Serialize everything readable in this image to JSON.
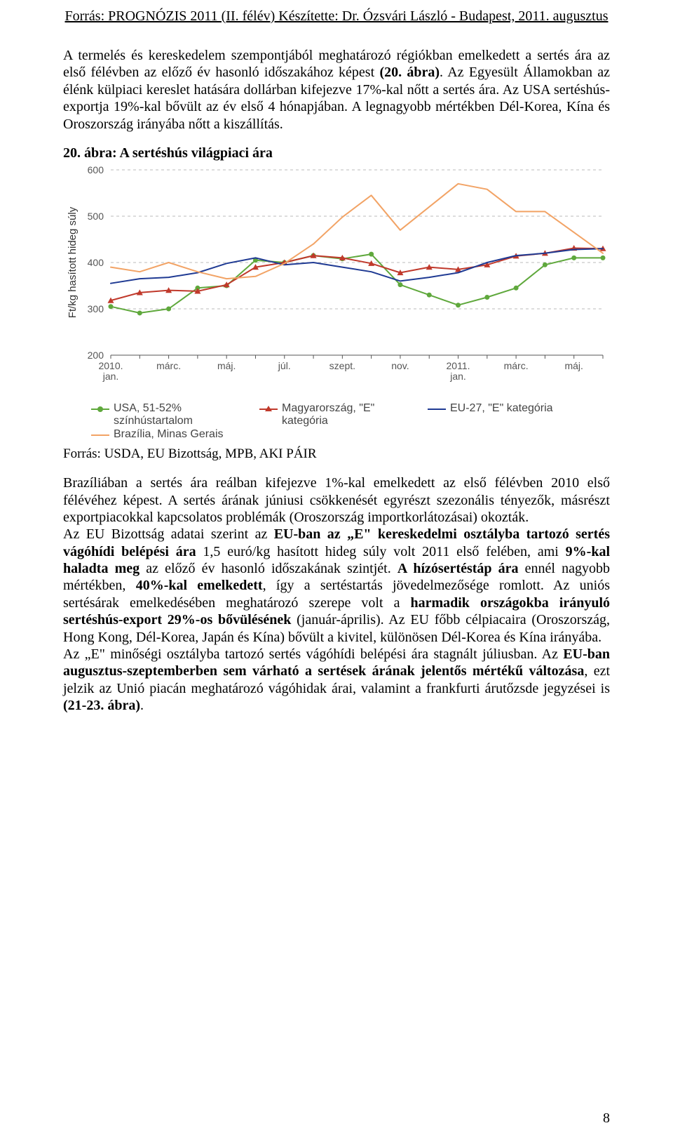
{
  "header_source": "Forrás: PROGNÓZIS 2011 (II. félév) Készítette: Dr. Ózsvári László - Budapest, 2011. augusztus",
  "para1_pre": "A termelés és kereskedelem szempontjából meghatározó régiókban emelkedett a sertés ára az első félévben az előző év hasonló időszakához képest ",
  "para1_bold": "(20. ábra)",
  "para1_post": ". Az Egyesült Államokban az élénk külpiaci kereslet hatására dollárban kifejezve 17%-kal nőtt a sertés ára. Az USA sertéshús-exportja 19%-kal bővült az év első 4 hónapjában. A legnagyobb mértékben Dél-Korea, Kína és Oroszország irányába nőtt a kiszállítás.",
  "chart_title": "20. ábra: A sertéshús világpiaci ára",
  "chart_source": "Forrás: USDA, EU Bizottság, MPB, AKI PÁIR",
  "para2": {
    "s1": "Brazíliában a sertés ára reálban kifejezve 1%-kal emelkedett az első félévben 2010 első félévéhez képest. A sertés árának júniusi csökkenését egyrészt szezonális tényezők, másrészt exportpiacokkal kapcsolatos problémák (Oroszország importkorlátozásai) okozták.",
    "s2a": "Az EU Bizottság adatai szerint az ",
    "s2b": "EU-ban az „E\" kereskedelmi osztályba tartozó sertés vágóhídi belépési ára",
    "s2c": " 1,5 euró/kg hasított hideg súly volt 2011 első felében, ami ",
    "s2d": "9%-kal haladta meg",
    "s2e": " az előző év hasonló időszakának szintjét. ",
    "s2f": "A hízósertéstáp ára",
    "s2g": " ennél nagyobb mértékben, ",
    "s2h": "40%-kal emelkedett",
    "s2i": ", így a sertéstartás jövedelmezősége romlott. Az uniós sertésárak emelkedésében meghatározó szerepe volt a ",
    "s2j": "harmadik országokba irányuló sertéshús-export 29%-os bővülésének",
    "s2k": " (január-április). Az EU főbb célpiacaira (Oroszország, Hong Kong, Dél-Korea, Japán és Kína) bővült a kivitel, különösen Dél-Korea és Kína irányába.",
    "s3a": "Az „E\" minőségi osztályba tartozó sertés vágóhídi belépési ára stagnált júliusban. Az ",
    "s3b": "EU-ban augusztus-szeptemberben sem várható a sertések árának jelentős mértékű változása",
    "s3c": ", ezt jelzik az Unió piacán meghatározó vágóhidak árai, valamint a frankfurti árutőzsde jegyzései is ",
    "s3d": "(21-23. ábra)",
    "s3e": "."
  },
  "page_number": "8",
  "chart": {
    "type": "line",
    "y_axis_label": "Ft/kg hasított hideg súly",
    "background_color": "#ffffff",
    "grid_color": "#bbbbbb",
    "axis_color": "#555555",
    "ylim": [
      200,
      600
    ],
    "ytick_step": 100,
    "y_ticks": [
      200,
      300,
      400,
      500,
      600
    ],
    "x_labels": [
      "2010.\njan.",
      "márc.",
      "máj.",
      "júl.",
      "szept.",
      "nov.",
      "2011.\njan.",
      "márc.",
      "máj."
    ],
    "x_count": 18,
    "line_width": 2,
    "marker_size": 7,
    "fontsize_axis": 13,
    "fontsize_label": 14,
    "series": [
      {
        "name": "USA, 51-52% színhústartalom",
        "color": "#5fa83c",
        "marker": "circle",
        "values": [
          305,
          291,
          300,
          345,
          350,
          405,
          400,
          415,
          408,
          418,
          352,
          330,
          308,
          325,
          345,
          395,
          410,
          410
        ]
      },
      {
        "name": "Magyarország, \"E\" kategória",
        "color": "#c0392b",
        "marker": "triangle",
        "values": [
          318,
          335,
          340,
          338,
          352,
          390,
          400,
          415,
          410,
          398,
          378,
          390,
          385,
          395,
          414,
          420,
          431,
          430
        ]
      },
      {
        "name": "EU-27, \"E\" kategória",
        "color": "#1f3a93",
        "marker": "none",
        "values": [
          355,
          365,
          368,
          378,
          398,
          410,
          395,
          400,
          390,
          380,
          360,
          368,
          378,
          400,
          415,
          420,
          428,
          430
        ]
      },
      {
        "name": "Brazília, Minas Gerais",
        "color": "#f2a365",
        "marker": "none",
        "values": [
          390,
          380,
          400,
          380,
          365,
          370,
          398,
          440,
          498,
          545,
          470,
          520,
          570,
          558,
          510,
          510,
          465,
          420
        ]
      }
    ]
  }
}
